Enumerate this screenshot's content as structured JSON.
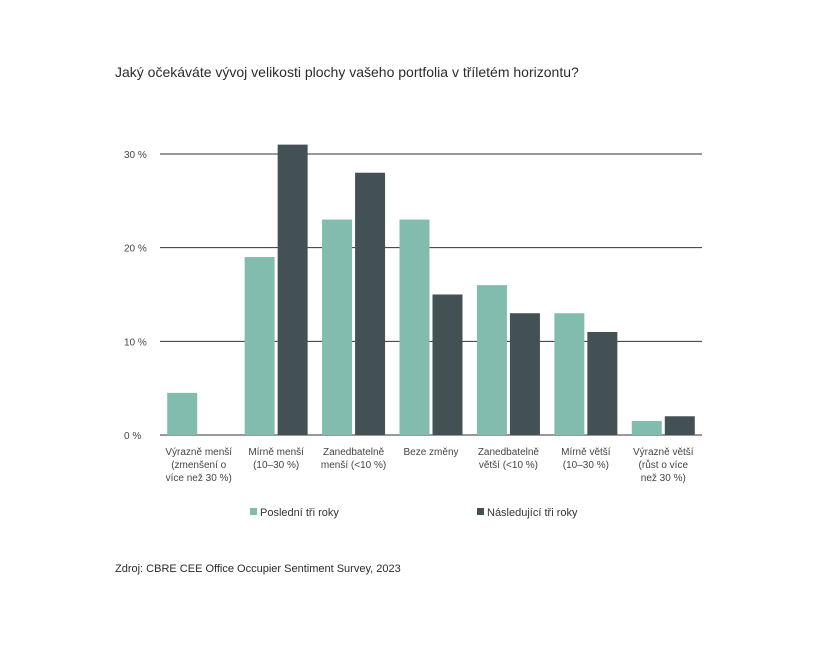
{
  "title": "Jaký očekáváte vývoj velikosti plochy vašeho portfolia v tříletém horizontu?",
  "source": "Zdroj: CBRE CEE Office Occupier Sentiment  Survey, 2023",
  "colors": {
    "series_1": "#82bcae",
    "series_2": "#435155",
    "gridline": "#333333"
  },
  "chart_data": {
    "type": "bar",
    "categories": [
      [
        "Výrazně menší",
        "(zmenšení o",
        "více než 30 %)"
      ],
      [
        "Mírně menší",
        "(10–30 %)"
      ],
      [
        "Zanedbatelně",
        "menší (<10 %)"
      ],
      [
        "Beze změny"
      ],
      [
        "Zanedbatelně",
        "větší (<10 %)"
      ],
      [
        "Mírně větší",
        "(10–30 %)"
      ],
      [
        "Výrazně větší",
        "(růst o více",
        "než 30 %)"
      ]
    ],
    "series": [
      {
        "name": "Poslední tři roky",
        "values": [
          4.5,
          19,
          23,
          23,
          16,
          13,
          1.5
        ]
      },
      {
        "name": "Následující tři roky",
        "values": [
          0,
          31,
          28,
          15,
          13,
          11,
          2
        ]
      }
    ],
    "ylim": [
      0,
      30
    ],
    "yticks": [
      0,
      10,
      20,
      30
    ],
    "ytick_labels": [
      "0 %",
      "10 %",
      "20 %",
      "30 %"
    ],
    "grid": true,
    "legend_position": "bottom"
  }
}
